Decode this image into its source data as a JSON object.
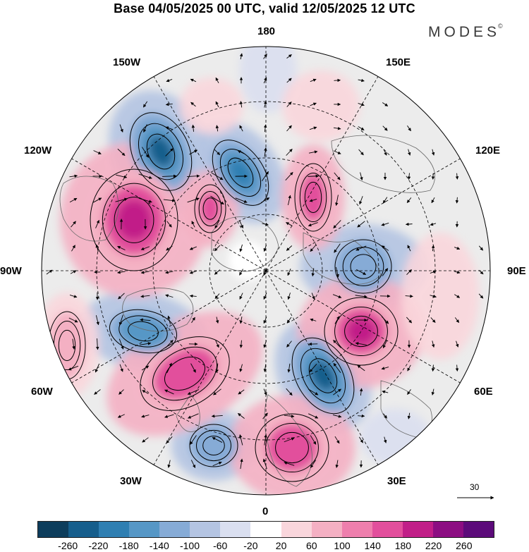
{
  "title": "Base 04/05/2025 00 UTC, valid 12/05/2025 12 UTC",
  "brand": "MODES",
  "brand_mark": "©",
  "longitude_labels": {
    "top": "180",
    "bottom": "0",
    "left": "90W",
    "right": "90E",
    "upper_left": "150W",
    "upper_right": "150E",
    "mid_upper_left": "120W",
    "mid_upper_right": "120E",
    "mid_lower_left": "60W",
    "mid_lower_right": "60E",
    "lower_left": "30W",
    "lower_right": "30E"
  },
  "reference_vector": "30",
  "colorbar": {
    "ticks": [
      "-260",
      "-220",
      "-180",
      "-140",
      "-100",
      "-60",
      "-20",
      "20",
      "60",
      "100",
      "140",
      "180",
      "220",
      "260"
    ],
    "colors": [
      "#0d3d5c",
      "#165e8c",
      "#2f7fb2",
      "#5697c6",
      "#86abd6",
      "#b4c4e2",
      "#dadff0",
      "#ffffff",
      "#f9d6dc",
      "#f4b0c3",
      "#ee7fad",
      "#e24f9c",
      "#c11f88",
      "#8c0e82",
      "#5c0b7a"
    ]
  },
  "anomaly_centers": [
    {
      "label": "negative",
      "level": -240
    },
    {
      "label": "negative",
      "level": -180
    },
    {
      "label": "negative",
      "level": -220
    },
    {
      "label": "negative",
      "level": -140
    },
    {
      "label": "negative",
      "level": -120
    },
    {
      "label": "negative",
      "level": -100
    },
    {
      "label": "positive",
      "level": 200
    },
    {
      "label": "positive",
      "level": 180
    },
    {
      "label": "positive",
      "level": 160
    },
    {
      "label": "positive",
      "level": 200
    },
    {
      "label": "positive",
      "level": 180
    },
    {
      "label": "positive",
      "level": 160
    },
    {
      "label": "positive",
      "level": 100
    }
  ]
}
